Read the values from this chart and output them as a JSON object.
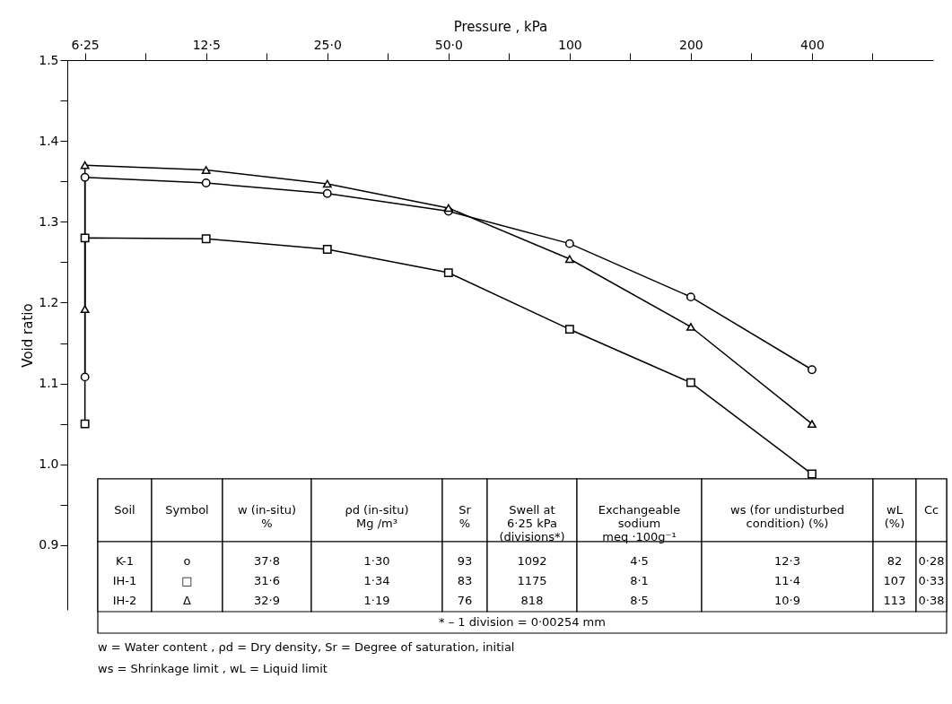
{
  "chart_data": {
    "type": "line",
    "xlabel": "Pressure , kPa",
    "ylabel": "Void ratio",
    "log": "x",
    "grid": false,
    "xlim": [
      5.65,
      800
    ],
    "ylim": [
      0.82,
      1.5
    ],
    "xticks": [
      {
        "value": 6.25,
        "label": "6·25"
      },
      {
        "value": 8.84,
        "label": null
      },
      {
        "value": 12.5,
        "label": "12·5"
      },
      {
        "value": 17.68,
        "label": null
      },
      {
        "value": 25,
        "label": "25·0"
      },
      {
        "value": 35.36,
        "label": null
      },
      {
        "value": 50,
        "label": "50·0"
      },
      {
        "value": 70.71,
        "label": null
      },
      100,
      {
        "value": 141.4,
        "label": null
      },
      200,
      {
        "value": 282.8,
        "label": null
      },
      400,
      {
        "value": 565.7,
        "label": null
      }
    ],
    "yticks": [
      0.9,
      {
        "value": 0.95,
        "label": null
      },
      {
        "value": 1.0,
        "label": "1.0"
      },
      {
        "value": 1.05,
        "label": null
      },
      1.1,
      {
        "value": 1.15,
        "label": null
      },
      1.2,
      {
        "value": 1.25,
        "label": null
      },
      1.3,
      {
        "value": 1.35,
        "label": null
      },
      1.4,
      {
        "value": 1.45,
        "label": null
      },
      1.5
    ],
    "series": [
      {
        "color": "#000000",
        "marker": "circle",
        "x": [
          6.25,
          6.25,
          12.5,
          25,
          50,
          100,
          200,
          400
        ],
        "values": [
          1.108,
          1.355,
          1.348,
          1.335,
          1.313,
          1.273,
          1.207,
          1.117
        ]
      },
      {
        "color": "#000000",
        "marker": "square",
        "x": [
          6.25,
          6.25,
          12.5,
          25,
          50,
          100,
          200,
          400
        ],
        "values": [
          1.05,
          1.28,
          1.279,
          1.266,
          1.237,
          1.167,
          1.101,
          0.988
        ]
      },
      {
        "color": "#000000",
        "marker": "triangle",
        "x": [
          6.25,
          6.25,
          12.5,
          25,
          50,
          100,
          200,
          400
        ],
        "values": [
          1.192,
          1.37,
          1.364,
          1.347,
          1.317,
          1.254,
          1.17,
          1.05
        ]
      }
    ],
    "annotations": [
      "Soil",
      "Symbol",
      "w (in-situ)\n%",
      "ρd (in-situ)\nMg /m³",
      "Sr\n%",
      "Swell at\n6·25 kPa\n(divisions*)",
      "Exchangeable\nsodium\nmeq ·100g⁻¹",
      "ws (for undisturbed\ncondition) (%)",
      "wL\n(%)",
      "Cc",
      "K-1",
      "o",
      "37·8",
      "1·30",
      "93",
      "1092",
      "4·5",
      "12·3",
      "82",
      "0·28",
      "IH-1",
      "□",
      "31·6",
      "1·34",
      "83",
      "1175",
      "8·1",
      "11·4",
      "107",
      "0·33",
      "IH-2",
      "Δ",
      "32·9",
      "1·19",
      "76",
      "818",
      "8·5",
      "10·9",
      "113",
      "0·38",
      "* – 1 division = 0·00254 mm",
      "w = Water content , ρd = Dry density,  Sr = Degree of saturation, initial",
      "ws = Shrinkage limit , wL = Liquid limit"
    ]
  }
}
